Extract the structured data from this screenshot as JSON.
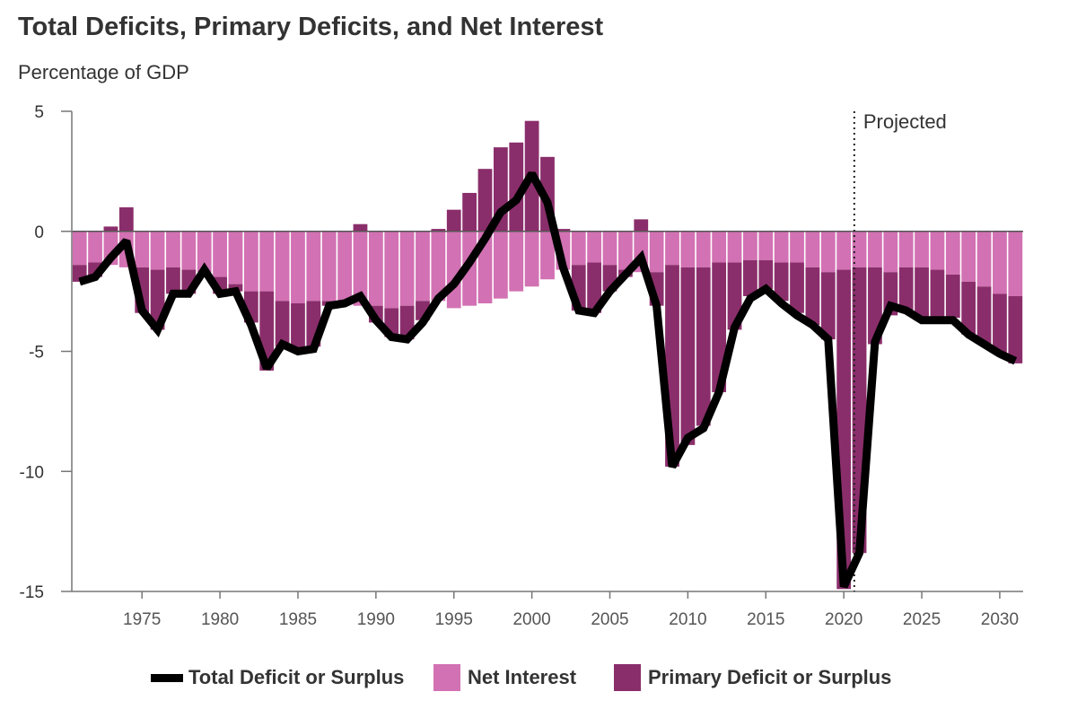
{
  "chart_data": {
    "type": "bar",
    "title": "Total Deficits, Primary Deficits, and Net Interest",
    "subtitle": "Percentage of GDP",
    "annotation": "Projected",
    "projection_start_year": 2021,
    "ylim": [
      -15,
      5
    ],
    "y_ticks": [
      5,
      0,
      -5,
      -10,
      -15
    ],
    "xlim": [
      1971,
      2031
    ],
    "x_ticks": [
      1975,
      1980,
      1985,
      1990,
      1995,
      2000,
      2005,
      2010,
      2015,
      2020,
      2025,
      2030
    ],
    "colors": {
      "total": "#000000",
      "net_interest": "#d271b3",
      "primary": "#8a2e6b"
    },
    "categories": [
      1971,
      1972,
      1973,
      1974,
      1975,
      1976,
      1977,
      1978,
      1979,
      1980,
      1981,
      1982,
      1983,
      1984,
      1985,
      1986,
      1987,
      1988,
      1989,
      1990,
      1991,
      1992,
      1993,
      1994,
      1995,
      1996,
      1997,
      1998,
      1999,
      2000,
      2001,
      2002,
      2003,
      2004,
      2005,
      2006,
      2007,
      2008,
      2009,
      2010,
      2011,
      2012,
      2013,
      2014,
      2015,
      2016,
      2017,
      2018,
      2019,
      2020,
      2021,
      2022,
      2023,
      2024,
      2025,
      2026,
      2027,
      2028,
      2029,
      2030,
      2031
    ],
    "series": [
      {
        "name": "Total Deficit or Surplus",
        "values": [
          -2.1,
          -1.9,
          -1.1,
          -0.4,
          -3.3,
          -4.1,
          -2.6,
          -2.6,
          -1.6,
          -2.6,
          -2.5,
          -3.9,
          -5.7,
          -4.7,
          -5.0,
          -4.9,
          -3.1,
          -3.0,
          -2.7,
          -3.7,
          -4.4,
          -4.5,
          -3.8,
          -2.8,
          -2.2,
          -1.3,
          -0.3,
          0.8,
          1.3,
          2.4,
          1.2,
          -1.5,
          -3.3,
          -3.4,
          -2.5,
          -1.8,
          -1.1,
          -3.1,
          -9.8,
          -8.6,
          -8.2,
          -6.7,
          -4.0,
          -2.8,
          -2.4,
          -3.0,
          -3.5,
          -3.9,
          -4.5,
          -14.8,
          -13.4,
          -4.6,
          -3.1,
          -3.3,
          -3.7,
          -3.7,
          -3.7,
          -4.3,
          -4.7,
          -5.1,
          -5.4
        ]
      },
      {
        "name": "Net Interest",
        "values": [
          -1.4,
          -1.3,
          -1.4,
          -1.5,
          -1.5,
          -1.6,
          -1.5,
          -1.6,
          -1.7,
          -1.9,
          -2.2,
          -2.5,
          -2.5,
          -2.9,
          -3.0,
          -2.9,
          -2.9,
          -3.0,
          -3.1,
          -3.1,
          -3.2,
          -3.1,
          -2.9,
          -2.9,
          -3.2,
          -3.1,
          -3.0,
          -2.8,
          -2.5,
          -2.3,
          -2.0,
          -1.6,
          -1.4,
          -1.3,
          -1.4,
          -1.6,
          -1.7,
          -1.7,
          -1.4,
          -1.5,
          -1.5,
          -1.3,
          -1.3,
          -1.2,
          -1.2,
          -1.3,
          -1.3,
          -1.5,
          -1.7,
          -1.6,
          -1.5,
          -1.5,
          -1.7,
          -1.5,
          -1.5,
          -1.6,
          -1.8,
          -2.1,
          -2.3,
          -2.6,
          -2.7
        ]
      },
      {
        "name": "Primary Deficit or Surplus",
        "values": [
          -0.7,
          -0.6,
          0.2,
          1.0,
          -1.9,
          -2.5,
          -1.1,
          -1.0,
          0.0,
          -0.7,
          -0.3,
          -1.3,
          -3.3,
          -1.9,
          -1.9,
          -1.9,
          -0.2,
          0.0,
          0.3,
          -0.7,
          -1.2,
          -1.4,
          -0.8,
          0.1,
          0.9,
          1.6,
          2.6,
          3.5,
          3.7,
          4.6,
          3.1,
          0.1,
          -1.9,
          -2.1,
          -1.1,
          -0.3,
          0.5,
          -1.4,
          -8.4,
          -7.4,
          -6.6,
          -5.4,
          -2.8,
          -1.5,
          -1.2,
          -1.6,
          -2.1,
          -2.4,
          -2.8,
          -13.3,
          -11.9,
          -3.2,
          -1.8,
          -1.8,
          -2.2,
          -2.1,
          -1.8,
          -2.2,
          -2.4,
          -2.5,
          -2.8
        ]
      }
    ]
  }
}
